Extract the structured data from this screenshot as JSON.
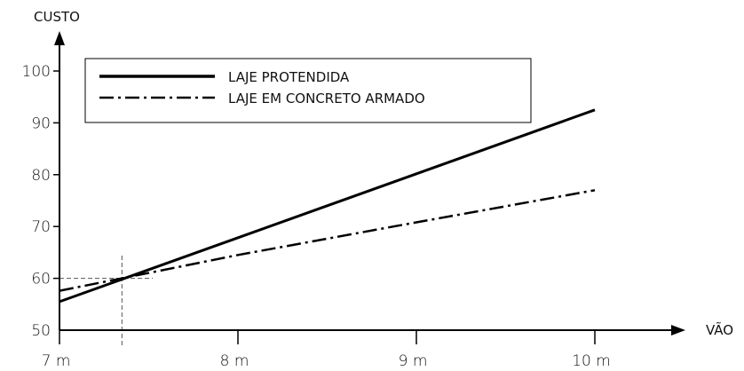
{
  "chart_data": {
    "type": "line",
    "title": "",
    "xlabel": "VÃO",
    "ylabel": "CUSTO",
    "xlim": [
      7,
      10.5
    ],
    "ylim": [
      50,
      105
    ],
    "x_ticks": [
      {
        "value": 7,
        "label": "7 m"
      },
      {
        "value": 8,
        "label": "8 m"
      },
      {
        "value": 9,
        "label": "9 m"
      },
      {
        "value": 10,
        "label": "10 m"
      }
    ],
    "y_ticks": [
      {
        "value": 50,
        "label": "50"
      },
      {
        "value": 60,
        "label": "60"
      },
      {
        "value": 70,
        "label": "70"
      },
      {
        "value": 80,
        "label": "80"
      },
      {
        "value": 90,
        "label": "90"
      },
      {
        "value": 100,
        "label": "100"
      }
    ],
    "grid": false,
    "legend_position": "top-left",
    "series": [
      {
        "name": "LAJE PROTENDIDA",
        "style": "solid",
        "color": "#000000",
        "points": [
          [
            7.0,
            55.5
          ],
          [
            10.0,
            92.5
          ]
        ]
      },
      {
        "name": "LAJE EM CONCRETO ARMADO",
        "style": "dash-dot",
        "color": "#000000",
        "points": [
          [
            7.0,
            57.6
          ],
          [
            7.35,
            60.0
          ],
          [
            8.0,
            64.5
          ],
          [
            9.0,
            70.8
          ],
          [
            10.0,
            77.0
          ]
        ]
      }
    ],
    "annotations": [
      {
        "type": "crossover-guides",
        "x": 7.35,
        "y": 60,
        "style": "dashed"
      }
    ]
  }
}
